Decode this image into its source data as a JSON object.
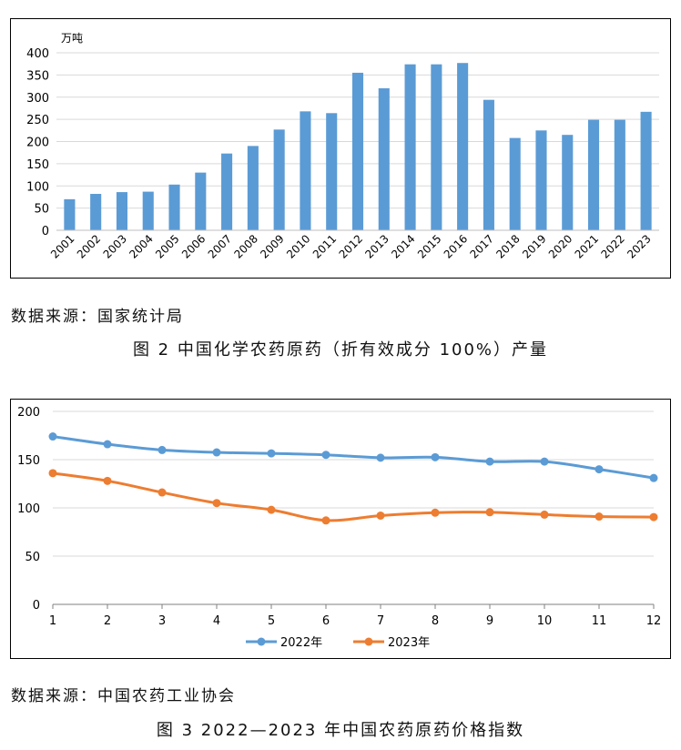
{
  "chart_data": [
    {
      "type": "bar",
      "unit_label": "万吨",
      "categories": [
        "2001",
        "2002",
        "2003",
        "2004",
        "2005",
        "2006",
        "2007",
        "2008",
        "2009",
        "2010",
        "2011",
        "2012",
        "2013",
        "2014",
        "2015",
        "2016",
        "2017",
        "2018",
        "2019",
        "2020",
        "2021",
        "2022",
        "2023"
      ],
      "values": [
        70,
        82,
        86,
        87,
        103,
        130,
        173,
        190,
        227,
        268,
        264,
        355,
        320,
        374,
        374,
        377,
        294,
        208,
        225,
        215,
        249,
        249,
        267
      ],
      "ylim": [
        0,
        400
      ],
      "yticks": [
        0,
        50,
        100,
        150,
        200,
        250,
        300,
        350,
        400
      ],
      "grid": true,
      "bar_color": "#5b9bd5"
    },
    {
      "type": "line",
      "x": [
        1,
        2,
        3,
        4,
        5,
        6,
        7,
        8,
        9,
        10,
        11,
        12
      ],
      "series": [
        {
          "name": "2022年",
          "color": "#5b9bd5",
          "values": [
            174,
            166,
            160,
            157.5,
            156.5,
            155,
            152,
            152.5,
            148,
            148,
            140,
            131
          ]
        },
        {
          "name": "2023年",
          "color": "#ed7d31",
          "values": [
            136,
            128,
            116,
            105,
            98,
            87,
            92,
            95,
            95.5,
            93,
            91,
            90.5
          ]
        }
      ],
      "ylim": [
        0,
        200
      ],
      "yticks": [
        0,
        50,
        100,
        150,
        200
      ],
      "grid": true,
      "legend_position": "bottom"
    }
  ],
  "captions": {
    "source1": "数据来源：国家统计局",
    "title1": "图 2  中国化学农药原药（折有效成分 100%）产量",
    "source2": "数据来源：中国农药工业协会",
    "title2": "图 3  2022—2023 年中国农药原药价格指数"
  }
}
